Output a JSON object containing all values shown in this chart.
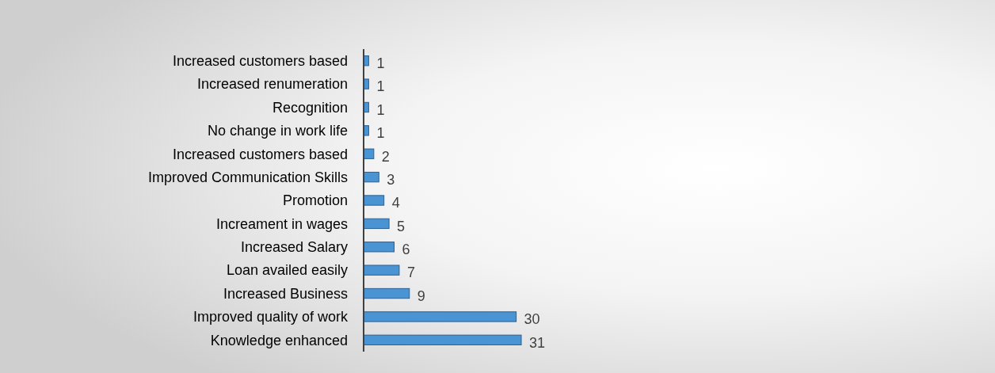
{
  "chart_data": {
    "type": "bar",
    "orientation": "horizontal",
    "categories": [
      "Increased customers based",
      "Increased renumeration",
      "Recognition",
      "No change in work life",
      "Increased customers based",
      "Improved Communication Skills",
      "Promotion",
      "Increament in wages",
      "Increased Salary",
      "Loan availed easily",
      "Increased Business",
      "Improved quality of work",
      "Knowledge enhanced"
    ],
    "values": [
      1,
      1,
      1,
      1,
      2,
      3,
      4,
      5,
      6,
      7,
      9,
      30,
      31
    ],
    "color": "#4a94d4",
    "data_labels": true
  }
}
